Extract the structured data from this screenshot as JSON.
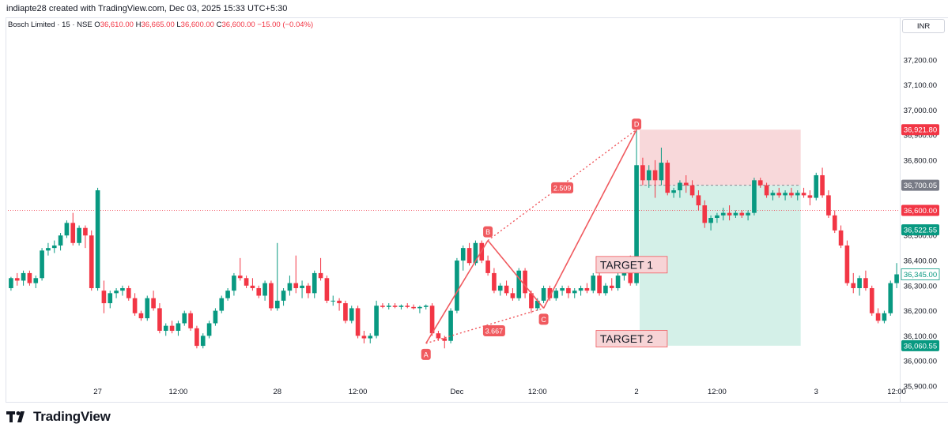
{
  "header": {
    "text": "indiapte28 created with TradingView.com, Dec 03, 2025 15:33 UTC+5:30"
  },
  "symbol": {
    "name": "Bosch Limited · 15 · NSE",
    "o_label": "O",
    "o_value": "36,610.00",
    "h_label": "H",
    "h_value": "36,665.00",
    "l_label": "L",
    "l_value": "36,600.00",
    "c_label": "C",
    "c_value": "36,600.00",
    "change": "−15.00 (−0.04%)"
  },
  "currency": "INR",
  "brand": "TradingView",
  "colors": {
    "up": "#089981",
    "down": "#f23645",
    "pattern": "#f05a5f",
    "stop_zone": "#f7d4d6",
    "target_zone": "#cfeee6"
  },
  "chart_data": {
    "type": "candlestick",
    "yaxis": {
      "range": [
        35840,
        37300
      ],
      "ticks": [
        "35,900.00",
        "36,000.00",
        "36,100.00",
        "36,200.00",
        "36,300.00",
        "36,400.00",
        "36,500.00",
        "36,600.00",
        "36,700.00",
        "36,800.00",
        "36,900.00",
        "37,000.00",
        "37,100.00",
        "37,200.00"
      ],
      "tick_values": [
        35900,
        36000,
        36100,
        36200,
        36300,
        36400,
        36500,
        36600,
        36700,
        36800,
        36900,
        37000,
        37100,
        37200
      ]
    },
    "xaxis": {
      "bars": 144,
      "labels": [
        {
          "text": "27",
          "bar": 14
        },
        {
          "text": "12:00",
          "bar": 27
        },
        {
          "text": "28",
          "bar": 43
        },
        {
          "text": "12:00",
          "bar": 56
        },
        {
          "text": "Dec",
          "bar": 72
        },
        {
          "text": "12:00",
          "bar": 85
        },
        {
          "text": "2",
          "bar": 101
        },
        {
          "text": "12:00",
          "bar": 114
        },
        {
          "text": "3",
          "bar": 130
        },
        {
          "text": "12:00",
          "bar": 143
        }
      ]
    },
    "grid": false,
    "candles": [
      [
        36290,
        36335,
        36280,
        36330
      ],
      [
        36330,
        36350,
        36300,
        36320
      ],
      [
        36320,
        36360,
        36300,
        36350
      ],
      [
        36350,
        36360,
        36300,
        36310
      ],
      [
        36310,
        36340,
        36290,
        36330
      ],
      [
        36330,
        36450,
        36320,
        36440
      ],
      [
        36440,
        36470,
        36420,
        36450
      ],
      [
        36450,
        36480,
        36430,
        36460
      ],
      [
        36460,
        36510,
        36440,
        36500
      ],
      [
        36500,
        36560,
        36490,
        36550
      ],
      [
        36550,
        36590,
        36460,
        36470
      ],
      [
        36470,
        36540,
        36460,
        36530
      ],
      [
        36530,
        36540,
        36450,
        36500
      ],
      [
        36500,
        36520,
        36280,
        36290
      ],
      [
        36290,
        36690,
        36280,
        36680
      ],
      [
        36280,
        36320,
        36190,
        36230
      ],
      [
        36230,
        36280,
        36210,
        36270
      ],
      [
        36270,
        36290,
        36250,
        36280
      ],
      [
        36280,
        36300,
        36260,
        36290
      ],
      [
        36290,
        36300,
        36240,
        36250
      ],
      [
        36250,
        36270,
        36180,
        36190
      ],
      [
        36190,
        36200,
        36160,
        36170
      ],
      [
        36170,
        36260,
        36160,
        36250
      ],
      [
        36250,
        36280,
        36200,
        36210
      ],
      [
        36210,
        36230,
        36110,
        36120
      ],
      [
        36120,
        36150,
        36100,
        36140
      ],
      [
        36140,
        36160,
        36110,
        36120
      ],
      [
        36120,
        36160,
        36100,
        36150
      ],
      [
        36150,
        36200,
        36140,
        36190
      ],
      [
        36190,
        36200,
        36120,
        36130
      ],
      [
        36130,
        36140,
        36050,
        36060
      ],
      [
        36060,
        36110,
        36050,
        36100
      ],
      [
        36100,
        36160,
        36090,
        36150
      ],
      [
        36150,
        36210,
        36140,
        36200
      ],
      [
        36200,
        36260,
        36190,
        36250
      ],
      [
        36250,
        36290,
        36240,
        36280
      ],
      [
        36280,
        36350,
        36260,
        36340
      ],
      [
        36340,
        36410,
        36320,
        36330
      ],
      [
        36330,
        36340,
        36290,
        36300
      ],
      [
        36300,
        36330,
        36280,
        36290
      ],
      [
        36290,
        36300,
        36250,
        36260
      ],
      [
        36260,
        36320,
        36240,
        36310
      ],
      [
        36310,
        36320,
        36200,
        36210
      ],
      [
        36210,
        36470,
        36200,
        36240
      ],
      [
        36240,
        36290,
        36220,
        36280
      ],
      [
        36280,
        36340,
        36260,
        36310
      ],
      [
        36310,
        36420,
        36270,
        36290
      ],
      [
        36290,
        36320,
        36250,
        36300
      ],
      [
        36300,
        36310,
        36250,
        36270
      ],
      [
        36270,
        36360,
        36250,
        36350
      ],
      [
        36350,
        36410,
        36320,
        36330
      ],
      [
        36330,
        36340,
        36230,
        36240
      ],
      [
        36240,
        36260,
        36220,
        36240
      ],
      [
        36240,
        36250,
        36200,
        36230
      ],
      [
        36230,
        36240,
        36150,
        36160
      ],
      [
        36160,
        36220,
        36150,
        36210
      ],
      [
        36210,
        36220,
        36090,
        36100
      ],
      [
        36100,
        36120,
        36070,
        36090
      ],
      [
        36090,
        36110,
        36070,
        36100
      ],
      [
        36100,
        36240,
        36090,
        36220
      ],
      [
        36220,
        36230,
        36210,
        36215
      ],
      [
        36215,
        36230,
        36205,
        36220
      ],
      [
        36220,
        36230,
        36210,
        36215
      ],
      [
        36215,
        36225,
        36205,
        36220
      ],
      [
        36220,
        36230,
        36210,
        36215
      ],
      [
        36215,
        36225,
        36205,
        36210
      ],
      [
        36210,
        36220,
        36190,
        36215
      ],
      [
        36215,
        36225,
        36205,
        36220
      ],
      [
        36220,
        36230,
        36100,
        36110
      ],
      [
        36110,
        36120,
        36080,
        36090
      ],
      [
        36090,
        36100,
        36050,
        36080
      ],
      [
        36080,
        36210,
        36070,
        36200
      ],
      [
        36200,
        36410,
        36190,
        36400
      ],
      [
        36400,
        36460,
        36360,
        36450
      ],
      [
        36450,
        36470,
        36380,
        36390
      ],
      [
        36390,
        36480,
        36380,
        36470
      ],
      [
        36470,
        36480,
        36390,
        36400
      ],
      [
        36400,
        36420,
        36340,
        36350
      ],
      [
        36350,
        36370,
        36270,
        36280
      ],
      [
        36280,
        36310,
        36260,
        36300
      ],
      [
        36300,
        36320,
        36260,
        36270
      ],
      [
        36270,
        36290,
        36240,
        36250
      ],
      [
        36250,
        36370,
        36240,
        36360
      ],
      [
        36360,
        36370,
        36250,
        36270
      ],
      [
        36270,
        36280,
        36190,
        36210
      ],
      [
        36210,
        36250,
        36200,
        36240
      ],
      [
        36240,
        36300,
        36230,
        36290
      ],
      [
        36290,
        36300,
        36240,
        36250
      ],
      [
        36250,
        36290,
        36240,
        36280
      ],
      [
        36280,
        36300,
        36260,
        36290
      ],
      [
        36290,
        36300,
        36250,
        36270
      ],
      [
        36270,
        36290,
        36250,
        36280
      ],
      [
        36280,
        36300,
        36260,
        36290
      ],
      [
        36290,
        36310,
        36270,
        36280
      ],
      [
        36280,
        36350,
        36270,
        36340
      ],
      [
        36340,
        36350,
        36260,
        36270
      ],
      [
        36270,
        36310,
        36260,
        36300
      ],
      [
        36300,
        36330,
        36280,
        36290
      ],
      [
        36290,
        36350,
        36280,
        36340
      ],
      [
        36340,
        36400,
        36320,
        36390
      ],
      [
        36390,
        36420,
        36300,
        36310
      ],
      [
        36310,
        36920,
        36300,
        36780
      ],
      [
        36780,
        36810,
        36700,
        36720
      ],
      [
        36720,
        36780,
        36690,
        36760
      ],
      [
        36760,
        36800,
        36650,
        36720
      ],
      [
        36720,
        36850,
        36700,
        36790
      ],
      [
        36790,
        36800,
        36660,
        36670
      ],
      [
        36670,
        36690,
        36650,
        36680
      ],
      [
        36680,
        36720,
        36650,
        36710
      ],
      [
        36710,
        36740,
        36670,
        36700
      ],
      [
        36700,
        36720,
        36650,
        36660
      ],
      [
        36660,
        36680,
        36600,
        36620
      ],
      [
        36620,
        36640,
        36530,
        36550
      ],
      [
        36550,
        36580,
        36520,
        36570
      ],
      [
        36570,
        36590,
        36550,
        36580
      ],
      [
        36580,
        36610,
        36560,
        36590
      ],
      [
        36590,
        36620,
        36560,
        36580
      ],
      [
        36580,
        36600,
        36570,
        36590
      ],
      [
        36590,
        36600,
        36570,
        36580
      ],
      [
        36580,
        36600,
        36560,
        36590
      ],
      [
        36590,
        36730,
        36580,
        36720
      ],
      [
        36720,
        36730,
        36690,
        36700
      ],
      [
        36700,
        36710,
        36650,
        36660
      ],
      [
        36660,
        36680,
        36640,
        36670
      ],
      [
        36670,
        36690,
        36650,
        36660
      ],
      [
        36660,
        36680,
        36640,
        36670
      ],
      [
        36670,
        36690,
        36650,
        36660
      ],
      [
        36660,
        36680,
        36640,
        36670
      ],
      [
        36670,
        36690,
        36650,
        36660
      ],
      [
        36660,
        36680,
        36620,
        36650
      ],
      [
        36650,
        36750,
        36640,
        36740
      ],
      [
        36740,
        36770,
        36650,
        36660
      ],
      [
        36660,
        36680,
        36570,
        36580
      ],
      [
        36580,
        36600,
        36510,
        36520
      ],
      [
        36520,
        36540,
        36450,
        36460
      ],
      [
        36460,
        36480,
        36300,
        36310
      ],
      [
        36310,
        36350,
        36270,
        36290
      ],
      [
        36290,
        36340,
        36260,
        36330
      ],
      [
        36330,
        36360,
        36280,
        36290
      ],
      [
        36290,
        36300,
        36180,
        36190
      ],
      [
        36190,
        36210,
        36150,
        36160
      ],
      [
        36160,
        36200,
        36150,
        36190
      ],
      [
        36190,
        36320,
        36180,
        36310
      ],
      [
        36310,
        36390,
        36290,
        36345
      ]
    ],
    "price_labels": [
      {
        "text": "36,921.80",
        "value": 36921.8,
        "color": "#f23645"
      },
      {
        "text": "36,700.05",
        "value": 36700.05,
        "color": "#787b86"
      },
      {
        "text": "36,600.00",
        "value": 36600.0,
        "color": "#f23645"
      },
      {
        "text": "36,522.55",
        "value": 36522.55,
        "color": "#089981"
      },
      {
        "text": "36,345.00",
        "value": 36345.0,
        "color": "#089981",
        "outlined": true
      },
      {
        "text": "36,060.55",
        "value": 36060.55,
        "color": "#089981"
      }
    ],
    "current_price": 36600,
    "xabcd_pattern": {
      "points": [
        {
          "label": "A",
          "bar": 67,
          "price": 36070
        },
        {
          "label": "B",
          "bar": 77,
          "price": 36480
        },
        {
          "label": "C",
          "bar": 86,
          "price": 36210
        },
        {
          "label": "D",
          "bar": 101,
          "price": 36921.8
        }
      ],
      "ratios": [
        {
          "text": "2.509",
          "bar": 89,
          "price": 36690
        },
        {
          "text": "3.667",
          "bar": 78,
          "price": 36120
        }
      ]
    },
    "position_tool": {
      "entry": 36700.05,
      "stop": 36921.8,
      "target": 36060.55,
      "bar_start": 102,
      "bar_end": 127
    },
    "annotations": [
      {
        "text": "TARGET 1",
        "bar": 96,
        "price": 36385
      },
      {
        "text": "TARGET 2",
        "bar": 96,
        "price": 36090
      }
    ]
  }
}
